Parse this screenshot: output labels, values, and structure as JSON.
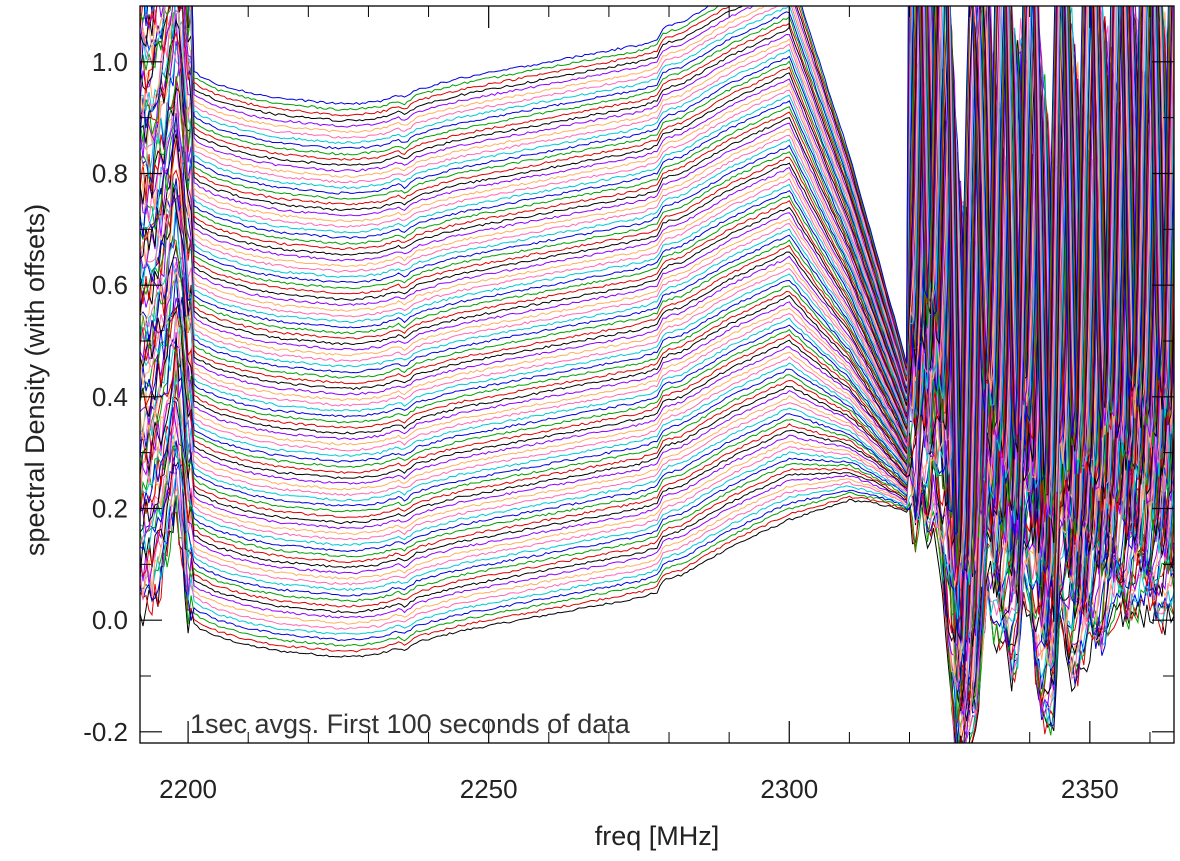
{
  "chart_data": {
    "type": "line",
    "title": "",
    "xlabel": "freq [MHz]",
    "ylabel": "spectral Density (with offsets)",
    "annotation": "1sec avgs. First 100 seconds of data",
    "xlim": [
      2192,
      2364
    ],
    "ylim": [
      -0.22,
      1.1
    ],
    "x_ticks": [
      2200,
      2250,
      2300,
      2350
    ],
    "y_ticks": [
      -0.2,
      0.0,
      0.2,
      0.4,
      0.6,
      0.8,
      1.0
    ],
    "y_tick_labels": [
      "-0.2",
      "0.0",
      "0.2",
      "0.4",
      "0.6",
      "0.8",
      "1.0"
    ],
    "n_spectra": 100,
    "offset_step": 0.01,
    "color_cycle": [
      "#000000",
      "#e00000",
      "#00a000",
      "#0000e0",
      "#00c8d8",
      "#ff69b4",
      "#ffb060",
      "#9000ff"
    ],
    "bottom_spectrum": {
      "x": [
        2192,
        2194,
        2196,
        2198,
        2199,
        2200,
        2202,
        2205,
        2210,
        2215,
        2220,
        2225,
        2228,
        2232,
        2235,
        2236,
        2238,
        2245,
        2255,
        2265,
        2275,
        2278,
        2279,
        2280,
        2282,
        2290,
        2300,
        2306,
        2310,
        2314,
        2318,
        2320,
        2321,
        2322,
        2323,
        2324,
        2326,
        2328,
        2329,
        2330,
        2331,
        2333,
        2334,
        2336,
        2337,
        2338,
        2339,
        2340,
        2341,
        2342,
        2344,
        2345,
        2346,
        2347,
        2348,
        2350,
        2351,
        2352,
        2354,
        2355,
        2356,
        2358,
        2360,
        2362,
        2364
      ],
      "y": [
        0.0,
        0.02,
        0.08,
        0.2,
        0.12,
        0.0,
        -0.015,
        -0.03,
        -0.045,
        -0.055,
        -0.06,
        -0.065,
        -0.065,
        -0.06,
        -0.05,
        -0.055,
        -0.04,
        -0.02,
        0.0,
        0.02,
        0.04,
        0.05,
        0.07,
        0.075,
        0.08,
        0.13,
        0.18,
        0.2,
        0.215,
        0.21,
        0.2,
        0.19,
        0.12,
        0.2,
        0.15,
        0.18,
        0.0,
        -0.3,
        -0.3,
        -0.25,
        -0.2,
        0.05,
        -0.03,
        -0.05,
        -0.1,
        -0.08,
        0.05,
        0.0,
        -0.1,
        -0.18,
        -0.2,
        0.0,
        -0.05,
        -0.1,
        -0.1,
        -0.05,
        -0.05,
        -0.05,
        0.0,
        0.02,
        0.0,
        0.01,
        0.02,
        0.0,
        0.0
      ]
    }
  }
}
